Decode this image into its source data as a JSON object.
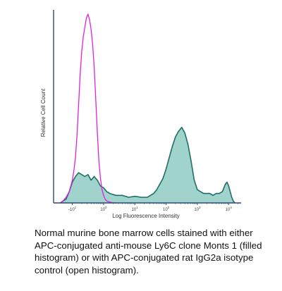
{
  "chart_data": {
    "type": "area",
    "xlabel": "Log Fluorescence Intensity",
    "ylabel": "Relative Cell Count",
    "x_scale": "log",
    "xlim": [
      -1.6,
      4.4
    ],
    "ylim": [
      0,
      1
    ],
    "x_ticks": [
      {
        "value": -1,
        "label": "-10",
        "exp": "1"
      },
      {
        "value": 0,
        "label": "10",
        "exp": "0"
      },
      {
        "value": 1,
        "label": "10",
        "exp": "1"
      },
      {
        "value": 2,
        "label": "10",
        "exp": "2"
      },
      {
        "value": 3,
        "label": "10",
        "exp": "3"
      },
      {
        "value": 4,
        "label": "10",
        "exp": "4"
      }
    ],
    "grid": false,
    "series": [
      {
        "style": "filled",
        "color": "#1f6f66",
        "fill": "#9fd3cb",
        "x": [
          -1.38,
          -1.3,
          -1.2,
          -1.1,
          -1.0,
          -0.9,
          -0.8,
          -0.7,
          -0.6,
          -0.5,
          -0.4,
          -0.3,
          -0.2,
          -0.1,
          0.0,
          0.1,
          0.2,
          0.4,
          0.6,
          0.8,
          1.0,
          1.2,
          1.4,
          1.5,
          1.6,
          1.7,
          1.8,
          1.9,
          2.0,
          2.1,
          2.2,
          2.3,
          2.4,
          2.5,
          2.6,
          2.7,
          2.8,
          2.9,
          3.0,
          3.1,
          3.2,
          3.3,
          3.4,
          3.5,
          3.6,
          3.7,
          3.8,
          3.85,
          3.9,
          3.95,
          4.0,
          4.05,
          4.1,
          4.15,
          4.2
        ],
        "values": [
          0.0,
          0.01,
          0.02,
          0.06,
          0.11,
          0.14,
          0.16,
          0.15,
          0.14,
          0.15,
          0.12,
          0.14,
          0.12,
          0.09,
          0.08,
          0.06,
          0.05,
          0.04,
          0.04,
          0.03,
          0.035,
          0.03,
          0.03,
          0.04,
          0.05,
          0.07,
          0.1,
          0.13,
          0.18,
          0.24,
          0.3,
          0.35,
          0.38,
          0.4,
          0.37,
          0.31,
          0.22,
          0.12,
          0.07,
          0.06,
          0.05,
          0.05,
          0.05,
          0.04,
          0.05,
          0.05,
          0.06,
          0.08,
          0.1,
          0.11,
          0.09,
          0.06,
          0.03,
          0.01,
          0.0
        ]
      },
      {
        "style": "open",
        "color": "#e020e0",
        "x": [
          -1.4,
          -1.3,
          -1.2,
          -1.1,
          -1.0,
          -0.95,
          -0.9,
          -0.85,
          -0.8,
          -0.75,
          -0.7,
          -0.65,
          -0.6,
          -0.55,
          -0.5,
          -0.45,
          -0.4,
          -0.35,
          -0.3,
          -0.25,
          -0.2,
          -0.15,
          -0.1,
          -0.05,
          0.0,
          0.05,
          0.1,
          0.2,
          0.3,
          0.4
        ],
        "values": [
          0.0,
          0.01,
          0.03,
          0.06,
          0.12,
          0.17,
          0.24,
          0.36,
          0.52,
          0.68,
          0.8,
          0.88,
          0.93,
          0.98,
          1.0,
          0.97,
          0.92,
          0.84,
          0.72,
          0.55,
          0.37,
          0.22,
          0.13,
          0.07,
          0.04,
          0.02,
          0.01,
          0.005,
          0.0,
          0.0
        ]
      }
    ]
  },
  "caption": "Normal murine bone marrow cells stained with either APC-conjugated anti-mouse Ly6C clone Monts 1 (filled histogram) or with APC-conjugated rat IgG2a isotype control (open histogram)."
}
